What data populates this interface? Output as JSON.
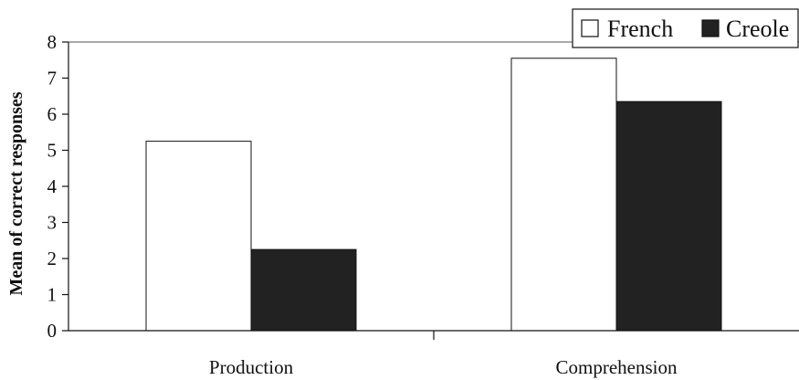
{
  "chart_data": {
    "type": "bar",
    "title": "",
    "xlabel": "",
    "ylabel": "Mean of correct responses",
    "categories": [
      "Production",
      "Comprehension"
    ],
    "series": [
      {
        "name": "French",
        "values": [
          5.25,
          7.55
        ],
        "color": "#ffffff",
        "stroke": "#111111"
      },
      {
        "name": "Creole",
        "values": [
          2.25,
          6.35
        ],
        "color": "#222222",
        "stroke": "#111111"
      }
    ],
    "ylim": [
      0,
      8
    ],
    "yticks": [
      "0",
      "1",
      "2",
      "3",
      "4",
      "5",
      "6",
      "7",
      "8"
    ],
    "grid": false,
    "legend_position": "top-right"
  }
}
